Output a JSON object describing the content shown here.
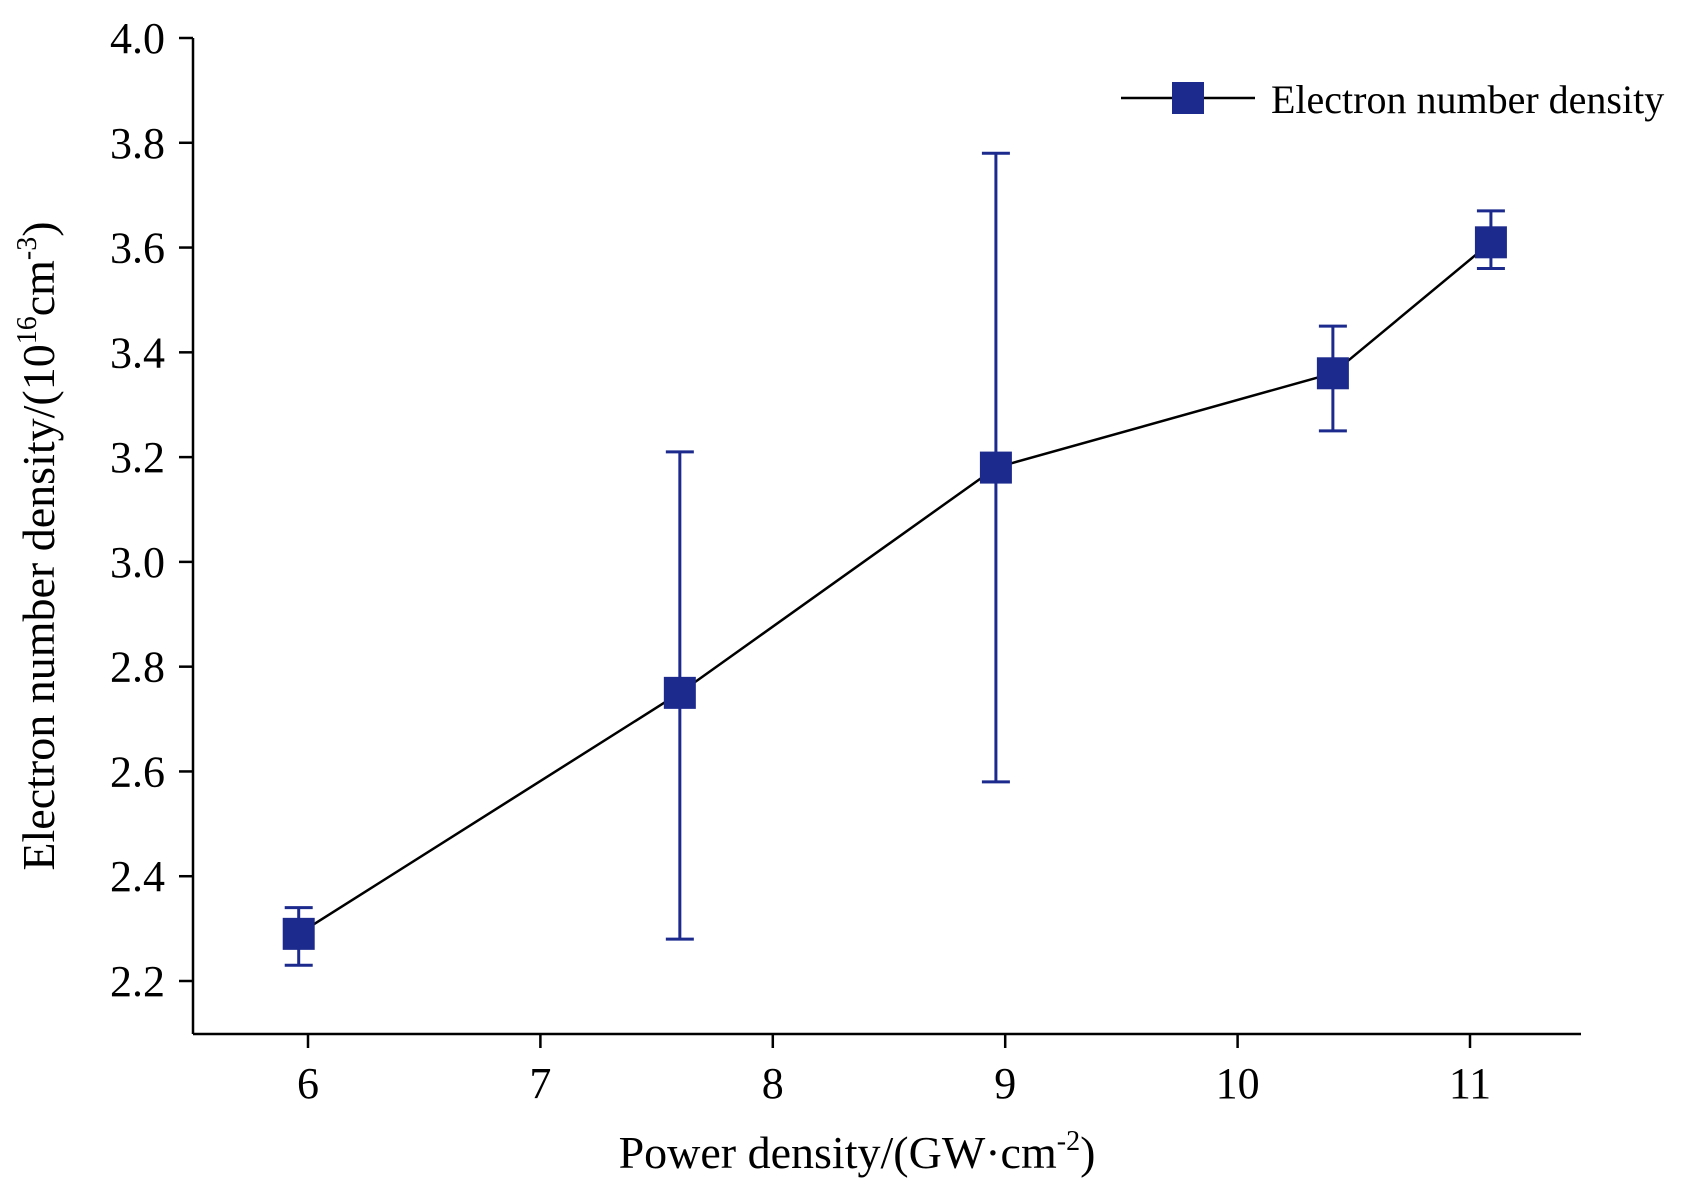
{
  "chart_data": {
    "type": "line",
    "xlabel": "Power density/(GW·cm",
    "xlabel_sup": "-2",
    "xlabel_end": ")",
    "ylabel": "Electron number density/(10",
    "ylabel_sup1": "16",
    "ylabel_mid": "cm",
    "ylabel_sup2": "-3",
    "ylabel_end": ")",
    "xlim": [
      5.5,
      11.5
    ],
    "ylim": [
      2.1,
      4.0
    ],
    "x_ticks": [
      6,
      7,
      8,
      9,
      10,
      11
    ],
    "x_tick_labels": [
      "6",
      "7",
      "8",
      "9",
      "10",
      "11"
    ],
    "y_ticks": [
      2.2,
      2.4,
      2.6,
      2.8,
      3.0,
      3.2,
      3.4,
      3.6,
      3.8,
      4.0
    ],
    "y_tick_labels": [
      "2.2",
      "2.4",
      "2.6",
      "2.8",
      "3.0",
      "3.2",
      "3.4",
      "3.6",
      "3.8",
      "4.0"
    ],
    "grid": false,
    "legend_position": "top-right",
    "series": [
      {
        "name": "Electron number density",
        "color": "#1c2a8e",
        "line_color": "#000000",
        "marker": "square",
        "x": [
          5.96,
          7.6,
          8.96,
          10.41,
          11.09
        ],
        "y": [
          2.29,
          2.75,
          3.18,
          3.36,
          3.61
        ],
        "y_err_low": [
          2.23,
          2.28,
          2.58,
          3.25,
          3.56
        ],
        "y_err_high": [
          2.34,
          3.21,
          3.78,
          3.45,
          3.67
        ]
      }
    ]
  }
}
